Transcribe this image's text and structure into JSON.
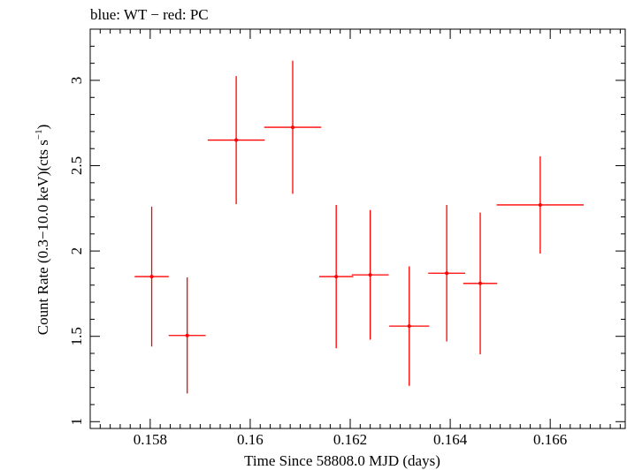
{
  "chart_data": {
    "type": "scatter",
    "title": "blue: WT − red: PC",
    "xlabel": "Time Since 58808.0 MJD (days)",
    "ylabel_main": "Count Rate (0.3−10.0 keV)(cts s",
    "ylabel_sup": "−1",
    "ylabel_close": ")",
    "xlim": [
      0.1568,
      0.1675
    ],
    "ylim": [
      0.96,
      3.3
    ],
    "x_ticks": [
      {
        "value": 0.158,
        "label": "0.158"
      },
      {
        "value": 0.16,
        "label": "0.16"
      },
      {
        "value": 0.162,
        "label": "0.162"
      },
      {
        "value": 0.164,
        "label": "0.164"
      },
      {
        "value": 0.166,
        "label": "0.166"
      }
    ],
    "y_ticks": [
      {
        "value": 1,
        "label": "1"
      },
      {
        "value": 1.5,
        "label": "1.5"
      },
      {
        "value": 2,
        "label": "2"
      },
      {
        "value": 2.5,
        "label": "2.5"
      },
      {
        "value": 3,
        "label": "3"
      }
    ],
    "x_minor_step": 0.0002,
    "y_minor_step": 0.1,
    "series": [
      {
        "color": "#ff0000",
        "points": [
          {
            "x": 0.15803,
            "xerr": 0.00034,
            "y": 1.85,
            "yerr": 0.41
          },
          {
            "x": 0.15874,
            "xerr": 0.00037,
            "y": 1.505,
            "yerr": 0.34
          },
          {
            "x": 0.15972,
            "xerr": 0.00057,
            "y": 2.65,
            "yerr": 0.375
          },
          {
            "x": 0.16085,
            "xerr": 0.00057,
            "y": 2.725,
            "yerr": 0.39
          },
          {
            "x": 0.16172,
            "xerr": 0.00034,
            "y": 1.85,
            "yerr": 0.42
          },
          {
            "x": 0.1624,
            "xerr": 0.00037,
            "y": 1.86,
            "yerr": 0.38
          },
          {
            "x": 0.16318,
            "xerr": 0.0004,
            "y": 1.56,
            "yerr": 0.35
          },
          {
            "x": 0.16393,
            "xerr": 0.00037,
            "y": 1.87,
            "yerr": 0.4
          },
          {
            "x": 0.1646,
            "xerr": 0.00034,
            "y": 1.81,
            "yerr": 0.415
          },
          {
            "x": 0.1658,
            "xerr": 0.00087,
            "y": 2.27,
            "yerr": 0.285
          }
        ]
      }
    ]
  }
}
